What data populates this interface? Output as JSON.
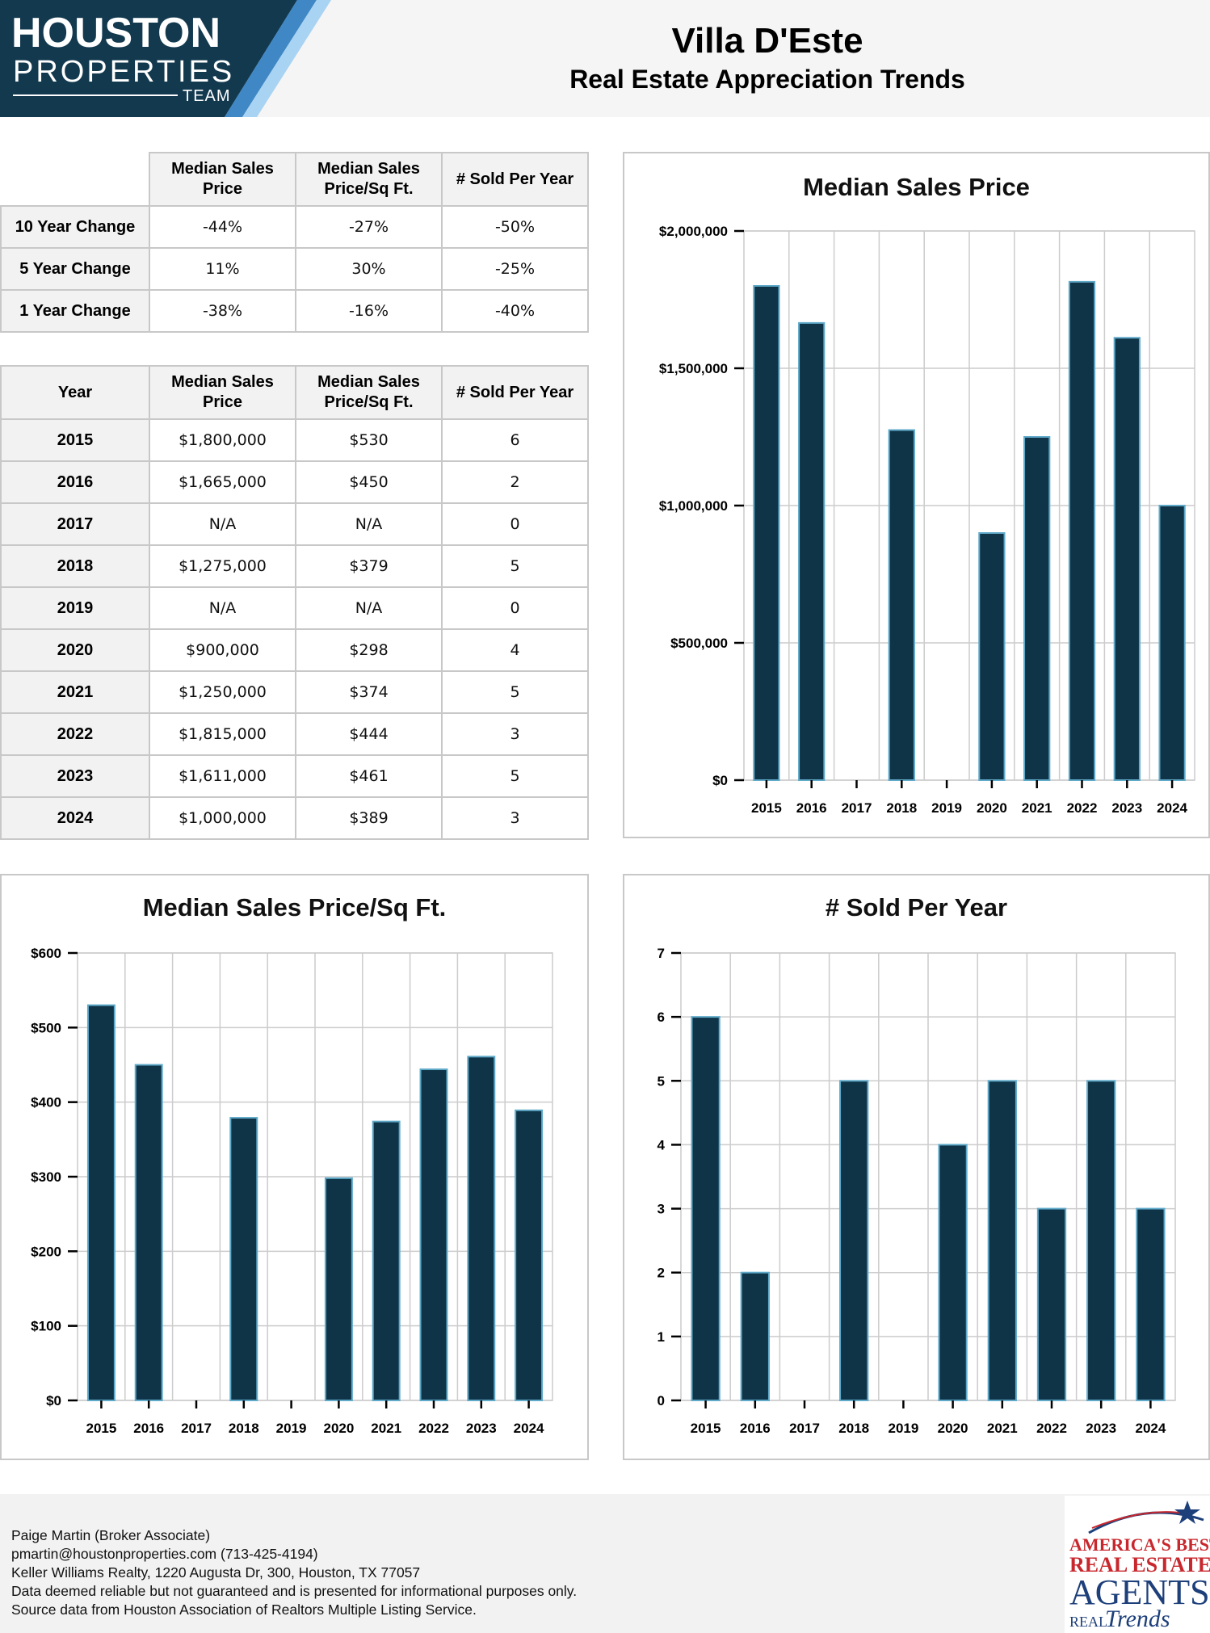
{
  "logo": {
    "line1": "HOUSTON",
    "line2": "PROPERTIES",
    "line3": "TEAM"
  },
  "header": {
    "title": "Villa D'Este",
    "subtitle": "Real Estate Appreciation Trends"
  },
  "change_table": {
    "columns": [
      "Median Sales Price",
      "Median Sales Price/Sq Ft.",
      "# Sold Per Year"
    ],
    "rows": [
      {
        "label": "10 Year Change",
        "values": [
          "-44%",
          "-27%",
          "-50%"
        ]
      },
      {
        "label": "5 Year Change",
        "values": [
          "11%",
          "30%",
          "-25%"
        ]
      },
      {
        "label": "1 Year Change",
        "values": [
          "-38%",
          "-16%",
          "-40%"
        ]
      }
    ]
  },
  "year_table": {
    "columns": [
      "Year",
      "Median Sales Price",
      "Median Sales Price/Sq Ft.",
      "# Sold Per Year"
    ],
    "rows": [
      [
        "2015",
        "$1,800,000",
        "$530",
        "6"
      ],
      [
        "2016",
        "$1,665,000",
        "$450",
        "2"
      ],
      [
        "2017",
        "N/A",
        "N/A",
        "0"
      ],
      [
        "2018",
        "$1,275,000",
        "$379",
        "5"
      ],
      [
        "2019",
        "N/A",
        "N/A",
        "0"
      ],
      [
        "2020",
        "$900,000",
        "$298",
        "4"
      ],
      [
        "2021",
        "$1,250,000",
        "$374",
        "5"
      ],
      [
        "2022",
        "$1,815,000",
        "$444",
        "3"
      ],
      [
        "2023",
        "$1,611,000",
        "$461",
        "5"
      ],
      [
        "2024",
        "$1,000,000",
        "$389",
        "3"
      ]
    ]
  },
  "chart_data": [
    {
      "id": "price",
      "type": "bar",
      "title": "Median Sales Price",
      "categories": [
        "2015",
        "2016",
        "2017",
        "2018",
        "2019",
        "2020",
        "2021",
        "2022",
        "2023",
        "2024"
      ],
      "values": [
        1800000,
        1665000,
        0,
        1275000,
        0,
        900000,
        1250000,
        1815000,
        1611000,
        1000000
      ],
      "ylim": [
        0,
        2000000
      ],
      "yticks": [
        0,
        500000,
        1000000,
        1500000,
        2000000
      ],
      "ytick_labels": [
        "$0",
        "$500,000",
        "$1,000,000",
        "$1,500,000",
        "$2,000,000"
      ],
      "grid": true,
      "bar_color": "#0f3447",
      "bar_edge_color": "#5fa9c9"
    },
    {
      "id": "sqft",
      "type": "bar",
      "title": "Median Sales Price/Sq Ft.",
      "categories": [
        "2015",
        "2016",
        "2017",
        "2018",
        "2019",
        "2020",
        "2021",
        "2022",
        "2023",
        "2024"
      ],
      "values": [
        530,
        450,
        0,
        379,
        0,
        298,
        374,
        444,
        461,
        389
      ],
      "ylim": [
        0,
        600
      ],
      "yticks": [
        0,
        100,
        200,
        300,
        400,
        500,
        600
      ],
      "ytick_labels": [
        "$0",
        "$100",
        "$200",
        "$300",
        "$400",
        "$500",
        "$600"
      ],
      "grid": true,
      "bar_color": "#0f3447",
      "bar_edge_color": "#5fa9c9"
    },
    {
      "id": "sold",
      "type": "bar",
      "title": "# Sold Per Year",
      "categories": [
        "2015",
        "2016",
        "2017",
        "2018",
        "2019",
        "2020",
        "2021",
        "2022",
        "2023",
        "2024"
      ],
      "values": [
        6,
        2,
        0,
        5,
        0,
        4,
        5,
        3,
        5,
        3
      ],
      "ylim": [
        0,
        7
      ],
      "yticks": [
        0,
        1,
        2,
        3,
        4,
        5,
        6,
        7
      ],
      "ytick_labels": [
        "0",
        "1",
        "2",
        "3",
        "4",
        "5",
        "6",
        "7"
      ],
      "grid": true,
      "bar_color": "#0f3447",
      "bar_edge_color": "#5fa9c9"
    }
  ],
  "footer": {
    "lines": [
      "Paige Martin (Broker Associate)",
      "pmartin@houstonproperties.com (713-425-4194)",
      "Keller Williams Realty, 1220 Augusta Dr, 300, Houston, TX 77057",
      "Data deemed reliable but not guaranteed and is presented for informational purposes only.",
      "Source data from Houston Association of Realtors Multiple Listing Service."
    ]
  },
  "badge": {
    "line1": "AMERICA'S BEST",
    "line2": "REAL ESTATE",
    "line3": "AGENTS",
    "line4": "REAL",
    "line5": "Trends"
  }
}
